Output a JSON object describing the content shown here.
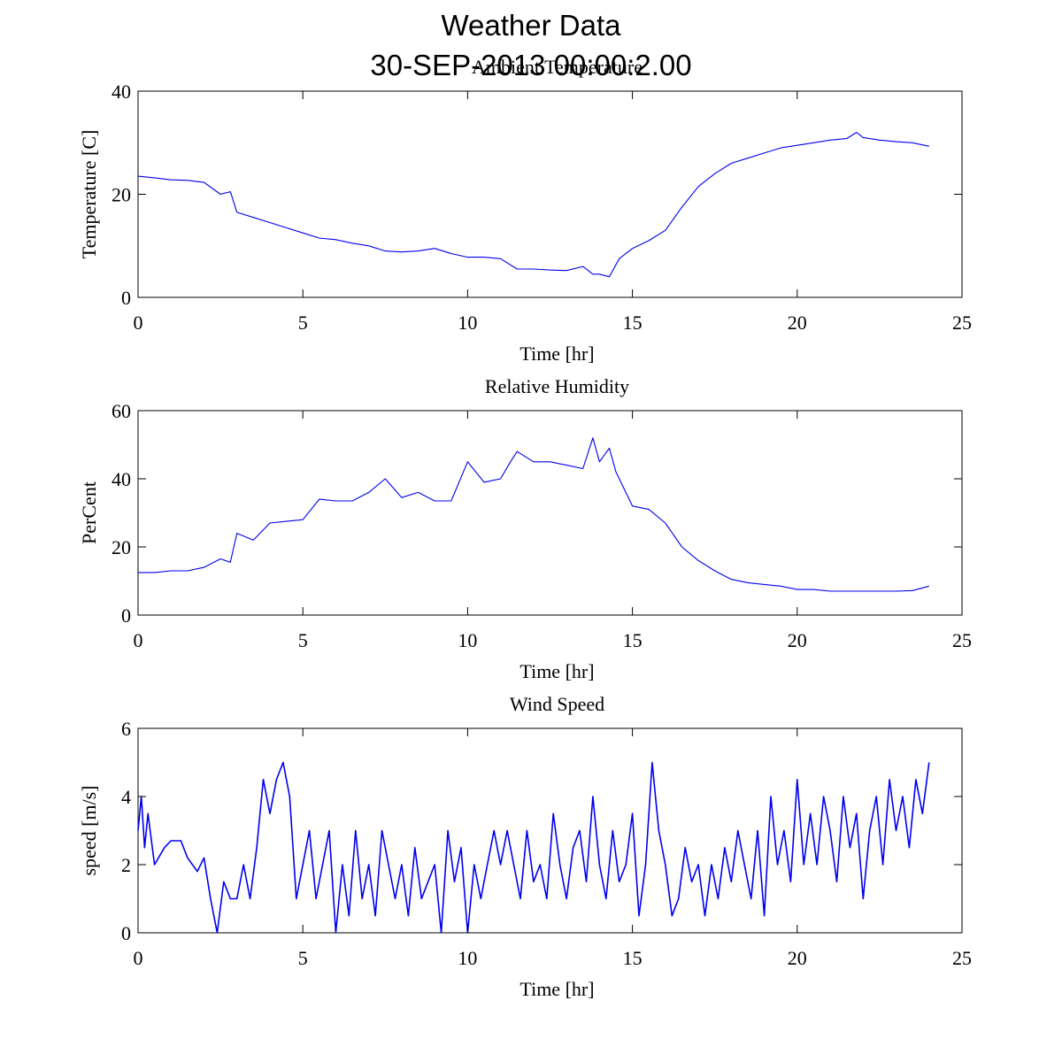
{
  "figure": {
    "title_line1": "Weather Data",
    "title_line2": "30-SEP-2013 00:00:2.00"
  },
  "colors": {
    "series": "#0000ee",
    "axes": "#000000",
    "background": "#ffffff"
  },
  "chart_data": [
    {
      "type": "line",
      "title": "Ambient Temperature",
      "xlabel": "Time [hr]",
      "ylabel": "Temperature [C]",
      "xlim": [
        0,
        25
      ],
      "ylim": [
        0,
        40
      ],
      "xticks": [
        0,
        5,
        10,
        15,
        20,
        25
      ],
      "yticks": [
        0,
        20,
        40
      ],
      "xtick_labels": [
        "0",
        "5",
        "10",
        "15",
        "20",
        "25"
      ],
      "ytick_labels": [
        "0",
        "20",
        "40"
      ],
      "grid": false,
      "series": [
        {
          "name": "Temperature",
          "x": [
            0,
            0.5,
            1.0,
            1.5,
            2.0,
            2.5,
            2.8,
            3.0,
            3.5,
            4.0,
            4.5,
            5.0,
            5.5,
            6.0,
            6.5,
            7.0,
            7.5,
            8.0,
            8.5,
            9.0,
            9.5,
            10.0,
            10.5,
            11.0,
            11.5,
            12.0,
            12.5,
            13.0,
            13.5,
            13.8,
            14.0,
            14.3,
            14.6,
            15.0,
            15.5,
            16.0,
            16.5,
            17.0,
            17.5,
            18.0,
            18.5,
            19.0,
            19.5,
            20.0,
            20.5,
            21.0,
            21.5,
            21.8,
            22.0,
            22.5,
            23.0,
            23.5,
            24.0
          ],
          "y": [
            23.5,
            23.2,
            22.8,
            22.7,
            22.3,
            20.0,
            20.5,
            16.5,
            15.5,
            14.5,
            13.5,
            12.5,
            11.5,
            11.2,
            10.5,
            10.0,
            9.0,
            8.8,
            9.0,
            9.5,
            8.5,
            7.8,
            7.8,
            7.5,
            5.5,
            5.5,
            5.3,
            5.2,
            6.0,
            4.5,
            4.5,
            4.0,
            7.5,
            9.5,
            11.0,
            13.0,
            17.5,
            21.5,
            24.0,
            26.0,
            27.0,
            28.0,
            29.0,
            29.5,
            30.0,
            30.5,
            30.8,
            32.0,
            31.0,
            30.5,
            30.2,
            30.0,
            29.3
          ]
        }
      ]
    },
    {
      "type": "line",
      "title": "Relative Humidity",
      "xlabel": "Time [hr]",
      "ylabel": "PerCent",
      "xlim": [
        0,
        25
      ],
      "ylim": [
        0,
        60
      ],
      "xticks": [
        0,
        5,
        10,
        15,
        20,
        25
      ],
      "yticks": [
        0,
        20,
        40,
        60
      ],
      "xtick_labels": [
        "0",
        "5",
        "10",
        "15",
        "20",
        "25"
      ],
      "ytick_labels": [
        "0",
        "20",
        "40",
        "60"
      ],
      "grid": false,
      "series": [
        {
          "name": "Humidity",
          "x": [
            0,
            0.5,
            1.0,
            1.5,
            2.0,
            2.5,
            2.8,
            3.0,
            3.5,
            4.0,
            4.5,
            5.0,
            5.5,
            6.0,
            6.5,
            7.0,
            7.5,
            8.0,
            8.5,
            9.0,
            9.5,
            10.0,
            10.5,
            11.0,
            11.3,
            11.5,
            12.0,
            12.5,
            13.0,
            13.5,
            13.8,
            14.0,
            14.3,
            14.5,
            15.0,
            15.5,
            16.0,
            16.5,
            17.0,
            17.5,
            18.0,
            18.5,
            19.0,
            19.5,
            20.0,
            20.5,
            21.0,
            21.5,
            22.0,
            22.5,
            23.0,
            23.5,
            24.0
          ],
          "y": [
            12.5,
            12.5,
            13.0,
            13.0,
            14.0,
            16.5,
            15.5,
            24.0,
            22.0,
            27.0,
            27.5,
            28.0,
            34.0,
            33.5,
            33.5,
            36.0,
            40.0,
            34.5,
            36.0,
            33.5,
            33.5,
            45.0,
            39.0,
            40.0,
            45.0,
            48.0,
            45.0,
            45.0,
            44.0,
            43.0,
            52.0,
            45.0,
            49.0,
            42.0,
            32.0,
            31.0,
            27.0,
            20.0,
            16.0,
            13.0,
            10.5,
            9.5,
            9.0,
            8.5,
            7.5,
            7.5,
            7.0,
            7.0,
            7.0,
            7.0,
            7.0,
            7.2,
            8.5
          ]
        }
      ]
    },
    {
      "type": "line",
      "title": "Wind Speed",
      "xlabel": "Time [hr]",
      "ylabel": "speed [m/s]",
      "xlim": [
        0,
        25
      ],
      "ylim": [
        0,
        6
      ],
      "xticks": [
        0,
        5,
        10,
        15,
        20,
        25
      ],
      "yticks": [
        0,
        2,
        4,
        6
      ],
      "xtick_labels": [
        "0",
        "5",
        "10",
        "15",
        "20",
        "25"
      ],
      "ytick_labels": [
        "0",
        "2",
        "4",
        "6"
      ],
      "grid": false,
      "series": [
        {
          "name": "Wind speed",
          "x": [
            0,
            0.1,
            0.2,
            0.3,
            0.5,
            0.8,
            1.0,
            1.3,
            1.5,
            1.8,
            2.0,
            2.2,
            2.4,
            2.6,
            2.8,
            3.0,
            3.2,
            3.4,
            3.6,
            3.8,
            4.0,
            4.2,
            4.4,
            4.6,
            4.8,
            5.0,
            5.2,
            5.4,
            5.6,
            5.8,
            6.0,
            6.2,
            6.4,
            6.6,
            6.8,
            7.0,
            7.2,
            7.4,
            7.6,
            7.8,
            8.0,
            8.2,
            8.4,
            8.6,
            8.8,
            9.0,
            9.2,
            9.4,
            9.6,
            9.8,
            10.0,
            10.2,
            10.4,
            10.6,
            10.8,
            11.0,
            11.2,
            11.4,
            11.6,
            11.8,
            12.0,
            12.2,
            12.4,
            12.6,
            12.8,
            13.0,
            13.2,
            13.4,
            13.6,
            13.8,
            14.0,
            14.2,
            14.4,
            14.6,
            14.8,
            15.0,
            15.2,
            15.4,
            15.6,
            15.8,
            16.0,
            16.2,
            16.4,
            16.6,
            16.8,
            17.0,
            17.2,
            17.4,
            17.6,
            17.8,
            18.0,
            18.2,
            18.4,
            18.6,
            18.8,
            19.0,
            19.2,
            19.4,
            19.6,
            19.8,
            20.0,
            20.2,
            20.4,
            20.6,
            20.8,
            21.0,
            21.2,
            21.4,
            21.6,
            21.8,
            22.0,
            22.2,
            22.4,
            22.6,
            22.8,
            23.0,
            23.2,
            23.4,
            23.6,
            23.8,
            24.0
          ],
          "y": [
            3.0,
            4.0,
            2.5,
            3.5,
            2.0,
            2.5,
            2.7,
            2.7,
            2.2,
            1.8,
            2.2,
            1.0,
            0.0,
            1.5,
            1.0,
            1.0,
            2.0,
            1.0,
            2.5,
            4.5,
            3.5,
            4.5,
            5.0,
            4.0,
            1.0,
            2.0,
            3.0,
            1.0,
            2.0,
            3.0,
            0.0,
            2.0,
            0.5,
            3.0,
            1.0,
            2.0,
            0.5,
            3.0,
            2.0,
            1.0,
            2.0,
            0.5,
            2.5,
            1.0,
            1.5,
            2.0,
            0.0,
            3.0,
            1.5,
            2.5,
            0.0,
            2.0,
            1.0,
            2.0,
            3.0,
            2.0,
            3.0,
            2.0,
            1.0,
            3.0,
            1.5,
            2.0,
            1.0,
            3.5,
            2.0,
            1.0,
            2.5,
            3.0,
            1.5,
            4.0,
            2.0,
            1.0,
            3.0,
            1.5,
            2.0,
            3.5,
            0.5,
            2.0,
            5.0,
            3.0,
            2.0,
            0.5,
            1.0,
            2.5,
            1.5,
            2.0,
            0.5,
            2.0,
            1.0,
            2.5,
            1.5,
            3.0,
            2.0,
            1.0,
            3.0,
            0.5,
            4.0,
            2.0,
            3.0,
            1.5,
            4.5,
            2.0,
            3.5,
            2.0,
            4.0,
            3.0,
            1.5,
            4.0,
            2.5,
            3.5,
            1.0,
            3.0,
            4.0,
            2.0,
            4.5,
            3.0,
            4.0,
            2.5,
            4.5,
            3.5,
            5.0
          ]
        }
      ]
    }
  ]
}
